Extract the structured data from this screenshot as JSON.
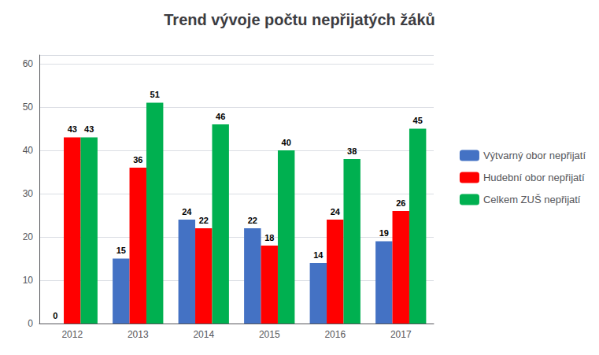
{
  "chart_data": {
    "type": "bar",
    "title": "Trend vývoje počtu nepřijatých žáků",
    "categories": [
      "2012",
      "2013",
      "2014",
      "2015",
      "2016",
      "2017"
    ],
    "series": [
      {
        "name": "Výtvarný obor nepřijatí",
        "color": "#4472C4",
        "values": [
          0,
          15,
          24,
          22,
          14,
          19
        ]
      },
      {
        "name": "Hudební obor nepřijatí",
        "color": "#FF0000",
        "values": [
          43,
          36,
          22,
          18,
          24,
          26
        ]
      },
      {
        "name": "Celkem ZUŠ nepřijatí",
        "color": "#00B050",
        "values": [
          43,
          51,
          46,
          40,
          38,
          45
        ]
      }
    ],
    "ylim": [
      0,
      62
    ],
    "yticks": [
      0,
      10,
      20,
      30,
      40,
      50,
      60
    ],
    "grid": true,
    "legend": "right",
    "data_labels": true
  }
}
